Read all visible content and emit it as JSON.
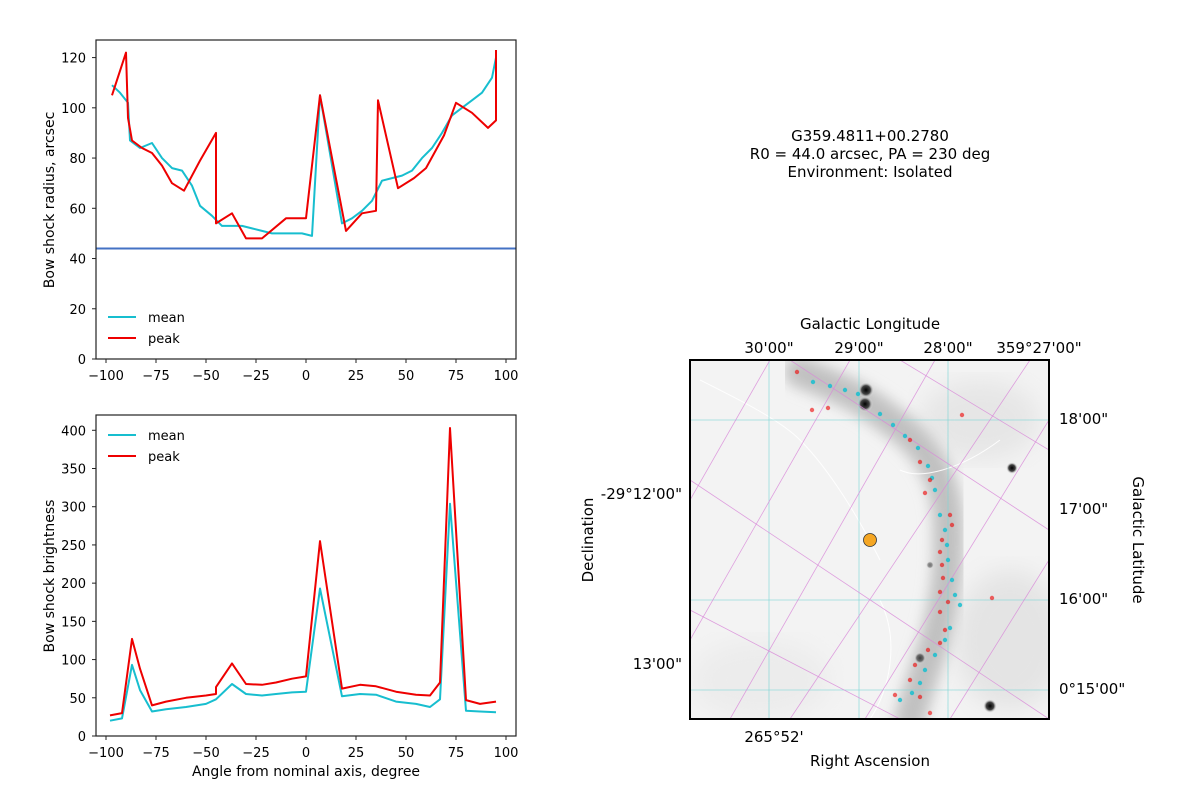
{
  "info": {
    "line1": "G359.4811+00.2780",
    "line2": "R0 = 44.0 arcsec, PA = 230 deg",
    "line3": "Environment: Isolated"
  },
  "colors": {
    "mean": "#17becf",
    "peak": "#ee0000",
    "r0_line": "#4472c4",
    "grid_icrs": "#7fd6d6",
    "grid_gal": "#d98ad9",
    "star_marker": "#f5a623"
  },
  "chart_data": [
    {
      "type": "line",
      "xlabel": "",
      "ylabel": "Bow shock radius, arcsec",
      "xlim": [
        -105,
        105
      ],
      "ylim": [
        0,
        127
      ],
      "xticks": [
        -100,
        -75,
        -50,
        -25,
        0,
        25,
        50,
        75,
        100
      ],
      "yticks": [
        0,
        20,
        40,
        60,
        80,
        100,
        120
      ],
      "legend": "lower-left",
      "hline": 44,
      "series": [
        {
          "name": "mean",
          "points": [
            [
              -97,
              109
            ],
            [
              -93,
              106
            ],
            [
              -89,
              102
            ],
            [
              -88,
              87
            ],
            [
              -83,
              84
            ],
            [
              -77,
              86
            ],
            [
              -72,
              80
            ],
            [
              -67,
              76
            ],
            [
              -62,
              75
            ],
            [
              -57,
              69
            ],
            [
              -53,
              61
            ],
            [
              -47,
              57
            ],
            [
              -42,
              53
            ],
            [
              -37,
              53
            ],
            [
              -32,
              53
            ],
            [
              -27,
              52
            ],
            [
              -22,
              51
            ],
            [
              -17,
              50
            ],
            [
              -12,
              50
            ],
            [
              -7,
              50
            ],
            [
              -2,
              50
            ],
            [
              3,
              49
            ],
            [
              7,
              105
            ],
            [
              18,
              54
            ],
            [
              23,
              56
            ],
            [
              28,
              59
            ],
            [
              33,
              63
            ],
            [
              38,
              71
            ],
            [
              43,
              72
            ],
            [
              48,
              73
            ],
            [
              53,
              75
            ],
            [
              58,
              80
            ],
            [
              63,
              84
            ],
            [
              68,
              90
            ],
            [
              73,
              97
            ],
            [
              78,
              100
            ],
            [
              83,
              103
            ],
            [
              88,
              106
            ],
            [
              93,
              112
            ],
            [
              95,
              120
            ]
          ]
        },
        {
          "name": "peak",
          "points": [
            [
              -97,
              105
            ],
            [
              -90,
              122
            ],
            [
              -89,
              96
            ],
            [
              -87,
              87
            ],
            [
              -82,
              84
            ],
            [
              -77,
              82
            ],
            [
              -72,
              77
            ],
            [
              -67,
              70
            ],
            [
              -61,
              67
            ],
            [
              -53,
              79
            ],
            [
              -45,
              90
            ],
            [
              -45,
              54
            ],
            [
              -37,
              58
            ],
            [
              -30,
              48
            ],
            [
              -22,
              48
            ],
            [
              -10,
              56
            ],
            [
              0,
              56
            ],
            [
              7,
              105
            ],
            [
              20,
              51
            ],
            [
              28,
              58
            ],
            [
              35,
              59
            ],
            [
              36,
              103
            ],
            [
              46,
              68
            ],
            [
              54,
              72
            ],
            [
              60,
              76
            ],
            [
              69,
              89
            ],
            [
              75,
              102
            ],
            [
              83,
              98
            ],
            [
              91,
              92
            ],
            [
              95,
              95
            ],
            [
              95,
              123
            ]
          ]
        }
      ]
    },
    {
      "type": "line",
      "xlabel": "Angle from nominal axis, degree",
      "ylabel": "Bow shock brightness",
      "xlim": [
        -105,
        105
      ],
      "ylim": [
        0,
        420
      ],
      "xticks": [
        -100,
        -75,
        -50,
        -25,
        0,
        25,
        50,
        75,
        100
      ],
      "yticks": [
        0,
        50,
        100,
        150,
        200,
        250,
        300,
        350,
        400
      ],
      "legend": "upper-left",
      "series": [
        {
          "name": "mean",
          "points": [
            [
              -98,
              20
            ],
            [
              -92,
              23
            ],
            [
              -87,
              93
            ],
            [
              -83,
              60
            ],
            [
              -77,
              32
            ],
            [
              -70,
              35
            ],
            [
              -60,
              38
            ],
            [
              -50,
              42
            ],
            [
              -45,
              48
            ],
            [
              -37,
              68
            ],
            [
              -30,
              55
            ],
            [
              -22,
              53
            ],
            [
              -15,
              55
            ],
            [
              -7,
              57
            ],
            [
              0,
              58
            ],
            [
              7,
              193
            ],
            [
              18,
              52
            ],
            [
              27,
              55
            ],
            [
              35,
              54
            ],
            [
              45,
              45
            ],
            [
              55,
              42
            ],
            [
              62,
              38
            ],
            [
              67,
              48
            ],
            [
              72,
              304
            ],
            [
              80,
              33
            ],
            [
              87,
              32
            ],
            [
              95,
              31
            ]
          ]
        },
        {
          "name": "peak",
          "points": [
            [
              -98,
              27
            ],
            [
              -92,
              30
            ],
            [
              -87,
              127
            ],
            [
              -83,
              88
            ],
            [
              -77,
              40
            ],
            [
              -70,
              45
            ],
            [
              -60,
              50
            ],
            [
              -50,
              53
            ],
            [
              -45,
              55
            ],
            [
              -45,
              64
            ],
            [
              -37,
              95
            ],
            [
              -30,
              68
            ],
            [
              -22,
              67
            ],
            [
              -15,
              70
            ],
            [
              -7,
              75
            ],
            [
              0,
              78
            ],
            [
              7,
              255
            ],
            [
              18,
              62
            ],
            [
              27,
              67
            ],
            [
              35,
              65
            ],
            [
              45,
              58
            ],
            [
              55,
              54
            ],
            [
              62,
              53
            ],
            [
              67,
              70
            ],
            [
              72,
              403
            ],
            [
              80,
              47
            ],
            [
              87,
              42
            ],
            [
              95,
              45
            ]
          ]
        }
      ]
    }
  ],
  "sky_image": {
    "top_axis_label": "Galactic Longitude",
    "top_ticks": [
      "30'00\"",
      "29'00\"",
      "28'00\"",
      "359°27'00\""
    ],
    "right_axis_label": "Galactic Latitude",
    "right_ticks": [
      "18'00\"",
      "17'00\"",
      "16'00\"",
      "0°15'00\""
    ],
    "left_axis_label": "Declination",
    "left_ticks": [
      "-29°12'00\"",
      "13'00\""
    ],
    "bottom_axis_label": "Right Ascension",
    "bottom_ticks": [
      "265°52'"
    ]
  }
}
